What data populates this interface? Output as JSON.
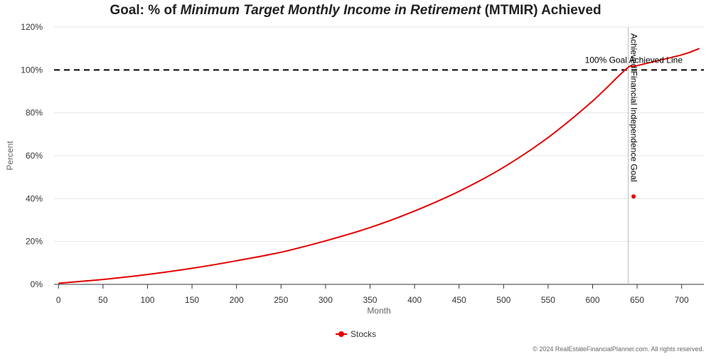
{
  "chart_data": {
    "type": "line",
    "title_parts": [
      {
        "text": "Goal: % of ",
        "italic": false
      },
      {
        "text": "Minimum Target Monthly Income in Retirement",
        "italic": true
      },
      {
        "text": " (MTMIR) Achieved",
        "italic": false
      }
    ],
    "xlabel": "Month",
    "ylabel": "Percent",
    "xlim": [
      -5,
      725
    ],
    "ylim": [
      0,
      120
    ],
    "x_ticks": [
      0,
      50,
      100,
      150,
      200,
      250,
      300,
      350,
      400,
      450,
      500,
      550,
      600,
      650,
      700
    ],
    "y_ticks": [
      0,
      20,
      40,
      60,
      80,
      100,
      120
    ],
    "y_tick_suffix": "%",
    "grid": "horizontal",
    "series": [
      {
        "name": "Stocks",
        "color": "#e50000",
        "x": [
          0,
          50,
          100,
          150,
          200,
          250,
          300,
          350,
          400,
          450,
          500,
          550,
          600,
          638,
          650,
          700,
          720
        ],
        "y": [
          0.5,
          2.3,
          4.6,
          7.5,
          11,
          15,
          20.3,
          26.5,
          34.2,
          43.4,
          54.6,
          68.5,
          85.5,
          100.5,
          102,
          107,
          110
        ]
      }
    ],
    "annotations": {
      "goal_line": {
        "y": 100,
        "label": "100% Goal Achieved Line",
        "style": "dashed",
        "color": "#000000"
      },
      "vertical_line": {
        "x": 640,
        "label": "Achieved Financial Independence Goal",
        "color": "#bbbbbb"
      },
      "marker": {
        "x": 646,
        "y": 41,
        "color": "#e50000"
      }
    },
    "legend": {
      "position": "bottom-center",
      "entries": [
        "Stocks"
      ]
    }
  },
  "footer": "© 2024 RealEstateFinancialPlanner.com. All rights reserved."
}
